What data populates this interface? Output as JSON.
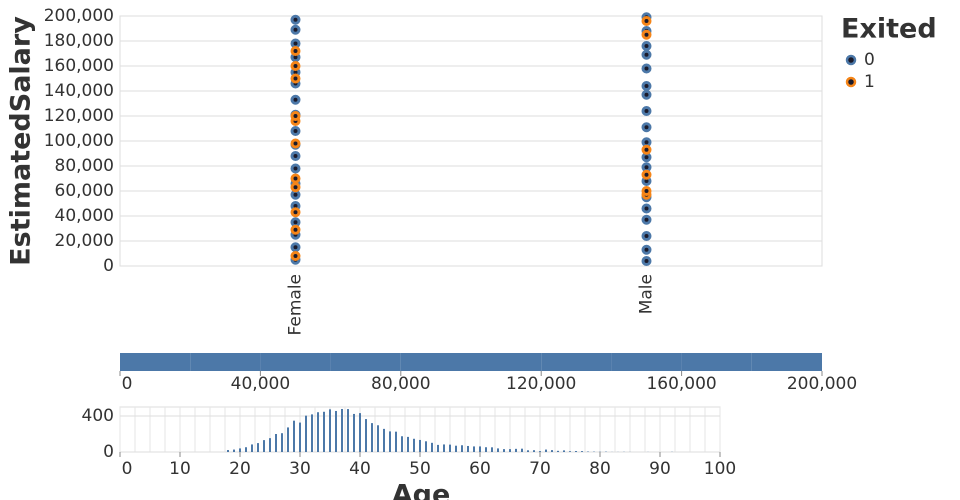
{
  "chart_data": [
    {
      "type": "scatter",
      "y_label": "EstimatedSalary",
      "legend_title": "Exited",
      "grid": true,
      "categories": [
        "Female",
        "Male"
      ],
      "ylim": [
        0,
        200000
      ],
      "yticks": [
        0,
        {
          "value": 20000,
          "label": "20,000"
        },
        {
          "value": 40000,
          "label": "40,000"
        },
        {
          "value": 60000,
          "label": "60,000"
        },
        {
          "value": 80000,
          "label": "80,000"
        },
        {
          "value": 100000,
          "label": "100,000"
        },
        {
          "value": 120000,
          "label": "120,000"
        },
        {
          "value": 140000,
          "label": "140,000"
        },
        {
          "value": 160000,
          "label": "160,000"
        },
        {
          "value": 180000,
          "label": "180,000"
        },
        {
          "value": 200000,
          "label": "200,000"
        }
      ],
      "series": [
        {
          "name": "0",
          "color": "#4c78a8",
          "x": [
            "Female",
            "Female",
            "Female",
            "Female",
            "Female",
            "Female",
            "Female",
            "Female",
            "Female",
            "Female",
            "Female",
            "Female",
            "Female",
            "Female",
            "Female",
            "Female",
            "Female",
            "Female",
            "Female",
            "Male",
            "Male",
            "Male",
            "Male",
            "Male",
            "Male",
            "Male",
            "Male",
            "Male",
            "Male",
            "Male",
            "Male",
            "Male",
            "Male",
            "Male",
            "Male",
            "Male",
            "Male",
            "Male"
          ],
          "values": [
            5000,
            15000,
            25000,
            35000,
            48000,
            57000,
            66000,
            78000,
            88000,
            97000,
            108000,
            121000,
            133000,
            146000,
            155000,
            167000,
            178000,
            189000,
            197000,
            4000,
            13000,
            24000,
            37000,
            46000,
            55000,
            68000,
            79000,
            87000,
            99000,
            111000,
            124000,
            137000,
            144000,
            158000,
            169000,
            176000,
            188000,
            199000
          ]
        },
        {
          "name": "1",
          "color": "#f58518",
          "x": [
            "Female",
            "Female",
            "Female",
            "Female",
            "Female",
            "Female",
            "Female",
            "Female",
            "Female",
            "Female",
            "Female",
            "Male",
            "Male",
            "Male",
            "Male",
            "Male",
            "Male"
          ],
          "values": [
            8000,
            29000,
            43000,
            63000,
            70000,
            98000,
            116000,
            120000,
            150000,
            160000,
            172000,
            57000,
            60000,
            73000,
            93000,
            185000,
            196000
          ]
        }
      ]
    },
    {
      "type": "histogram",
      "color": "#4c78a8",
      "bins": [
        0,
        20000,
        40000,
        60000,
        80000,
        100000,
        120000,
        140000,
        160000,
        180000,
        200000
      ],
      "values": [
        1000,
        1000,
        1000,
        1000,
        1000,
        1000,
        1000,
        1000,
        1000,
        1000
      ],
      "ylim": [
        0,
        1000
      ],
      "xlim": [
        0,
        200000
      ],
      "xticks": [
        0,
        {
          "value": 40000,
          "label": "40,000"
        },
        {
          "value": 80000,
          "label": "80,000"
        },
        {
          "value": 120000,
          "label": "120,000"
        },
        {
          "value": 160000,
          "label": "160,000"
        },
        {
          "value": 200000,
          "label": "200,000"
        }
      ]
    },
    {
      "type": "bar",
      "x_label": "Age",
      "color": "#4c78a8",
      "grid": true,
      "xlim": [
        0,
        100
      ],
      "xticks": [
        0,
        10,
        20,
        30,
        40,
        50,
        60,
        70,
        80,
        90,
        100
      ],
      "ylim": [
        0,
        500
      ],
      "yticks": [
        0,
        400
      ],
      "x": [
        18,
        19,
        20,
        21,
        22,
        23,
        24,
        25,
        26,
        27,
        28,
        29,
        30,
        31,
        32,
        33,
        34,
        35,
        36,
        37,
        38,
        39,
        40,
        41,
        42,
        43,
        44,
        45,
        46,
        47,
        48,
        49,
        50,
        51,
        52,
        53,
        54,
        55,
        56,
        57,
        58,
        59,
        60,
        61,
        62,
        63,
        64,
        65,
        66,
        67,
        68,
        69,
        70,
        71,
        72,
        73,
        74,
        75,
        76,
        77,
        78,
        79,
        80,
        81,
        82,
        83,
        84,
        85,
        88,
        92
      ],
      "values": [
        22,
        27,
        40,
        53,
        84,
        99,
        132,
        154,
        200,
        209,
        273,
        348,
        327,
        404,
        418,
        442,
        447,
        474,
        456,
        478,
        477,
        423,
        432,
        366,
        321,
        297,
        257,
        229,
        226,
        175,
        168,
        147,
        134,
        119,
        102,
        79,
        84,
        82,
        70,
        75,
        67,
        62,
        62,
        53,
        52,
        40,
        32,
        32,
        35,
        37,
        19,
        20,
        10,
        27,
        21,
        13,
        18,
        9,
        11,
        10,
        5,
        4,
        3,
        4,
        1,
        1,
        2,
        1,
        1,
        2
      ]
    }
  ]
}
